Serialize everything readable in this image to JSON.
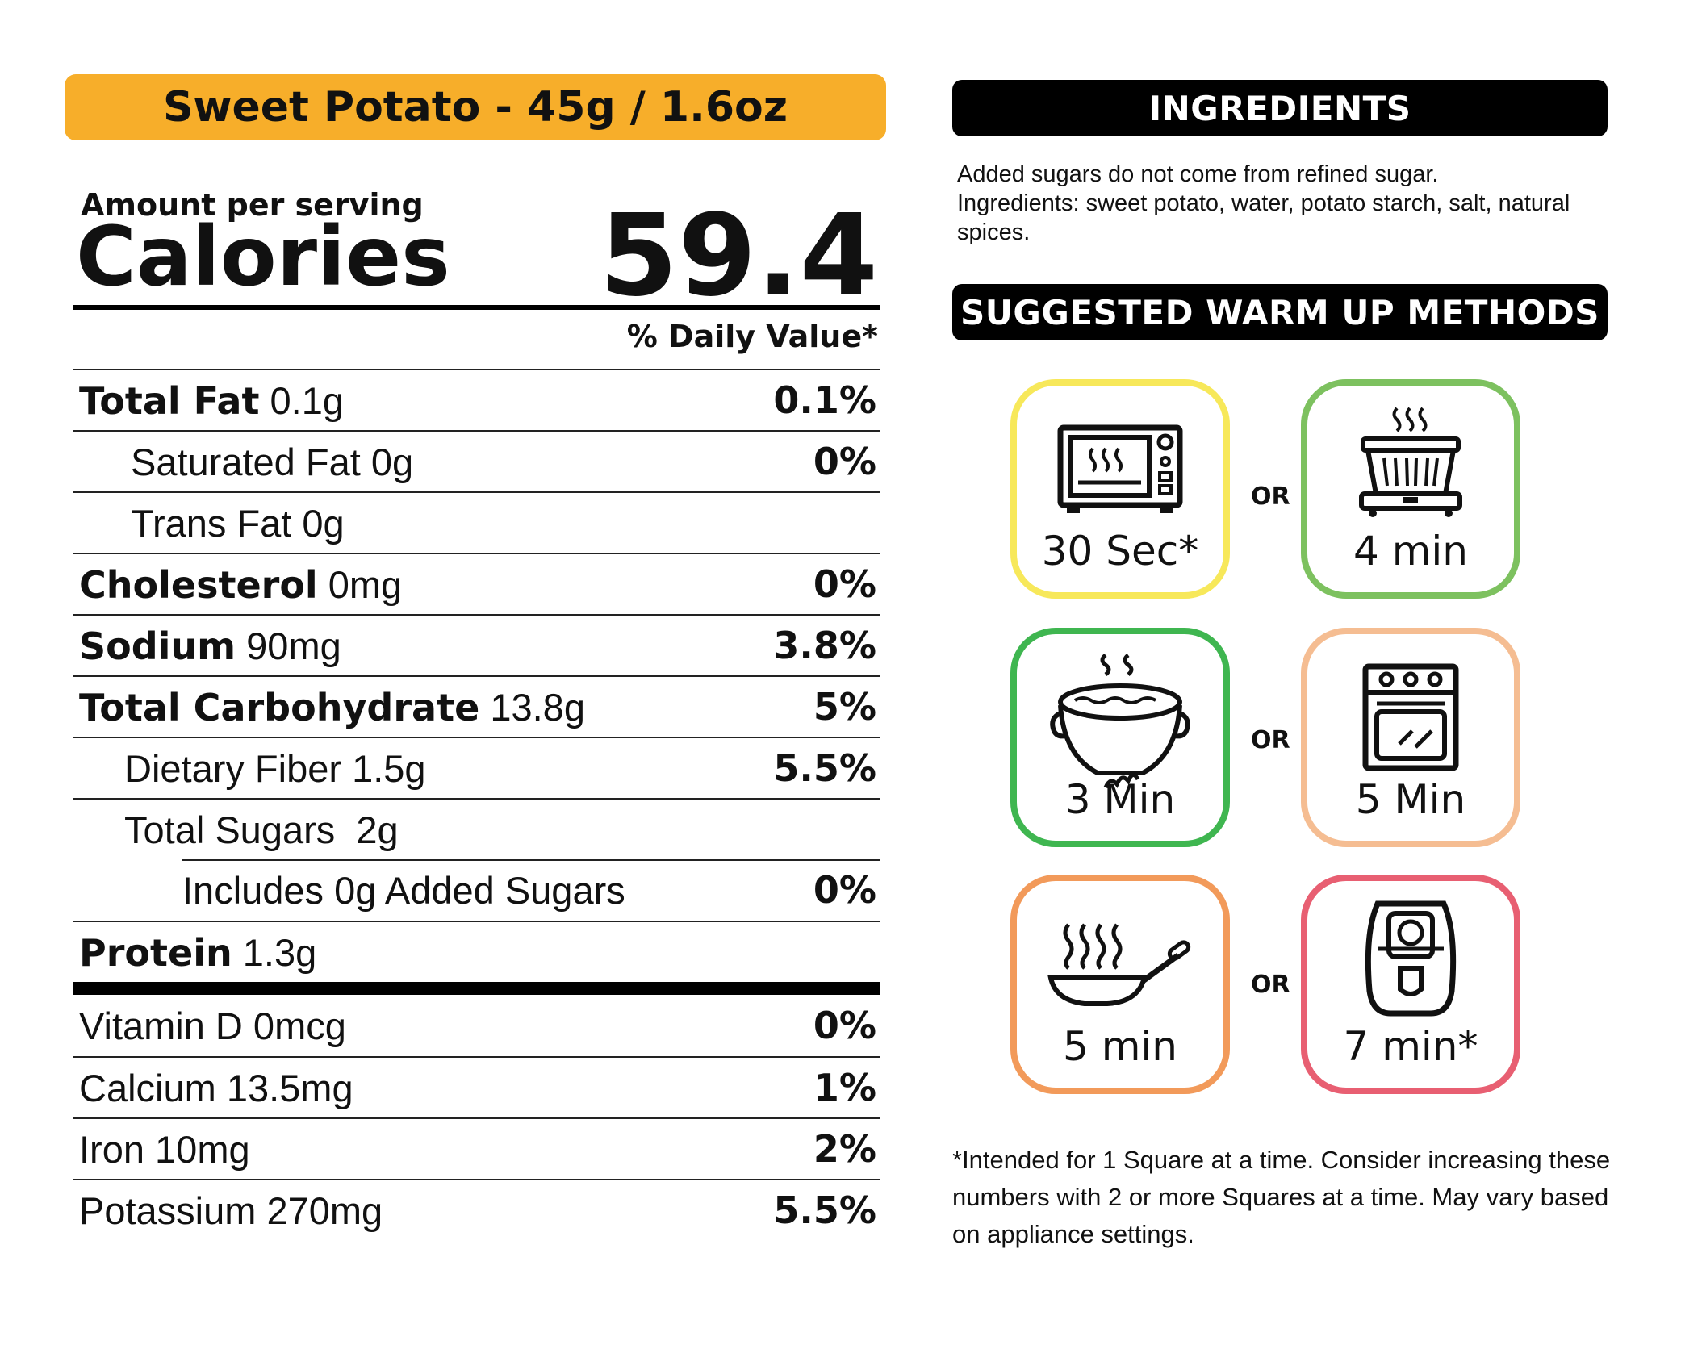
{
  "product": {
    "banner": "Sweet Potato - 45g / 1.6oz"
  },
  "nutrition": {
    "amount_per_serving": "Amount per serving",
    "calories_label": "Calories",
    "calories_value": "59.4",
    "daily_value_header": "% Daily Value*",
    "rows": [
      {
        "bold": "Total Fat",
        "amount": "0.1g",
        "dv": "0.1%"
      },
      {
        "label": "Saturated Fat 0g",
        "dv": "0%"
      },
      {
        "label": "Trans Fat 0g",
        "dv": ""
      },
      {
        "bold": "Cholesterol",
        "amount": "0mg",
        "dv": "0%"
      },
      {
        "bold": "Sodium",
        "amount": "90mg",
        "dv": "3.8%"
      },
      {
        "bold": "Total Carbohydrate",
        "amount": "13.8g",
        "dv": "5%"
      },
      {
        "label": "Dietary Fiber 1.5g",
        "dv": "5.5%"
      },
      {
        "label": "Total Sugars  2g",
        "dv": ""
      },
      {
        "label": "Includes 0g Added Sugars",
        "dv": "0%"
      },
      {
        "bold": "Protein",
        "amount": "1.3g",
        "dv": ""
      }
    ],
    "vitamins": [
      {
        "label": "Vitamin D 0mcg",
        "dv": "0%"
      },
      {
        "label": "Calcium 13.5mg",
        "dv": "1%"
      },
      {
        "label": "Iron 10mg",
        "dv": "2%"
      },
      {
        "label": "Potassium 270mg",
        "dv": "5.5%"
      }
    ]
  },
  "ingredients": {
    "title": "INGREDIENTS",
    "line1": "Added sugars do not come from refined sugar.",
    "line2": "Ingredients: sweet potato, water, potato starch, salt, natural spices."
  },
  "warm_up": {
    "title": "SUGGESTED WARM UP METHODS",
    "or_label": "OR",
    "methods": [
      {
        "icon": "microwave-icon",
        "time": "30 Sec*",
        "color": "#f7e85a"
      },
      {
        "icon": "steamer-icon",
        "time": "4 min",
        "color": "#7dc15f"
      },
      {
        "icon": "pot-icon",
        "time": "3 Min",
        "color": "#3fb650"
      },
      {
        "icon": "oven-icon",
        "time": "5 Min",
        "color": "#f5bd92"
      },
      {
        "icon": "frying-pan-icon",
        "time": "5 min",
        "color": "#f29a5a"
      },
      {
        "icon": "air-fryer-icon",
        "time": "7 min*",
        "color": "#e85f72"
      }
    ],
    "footnote": "*Intended for 1 Square at a time. Consider increasing these numbers with 2 or more Squares at a time. May vary based on appliance settings."
  },
  "colors": {
    "banner": "#f7ae2a",
    "pill": "#000000"
  }
}
